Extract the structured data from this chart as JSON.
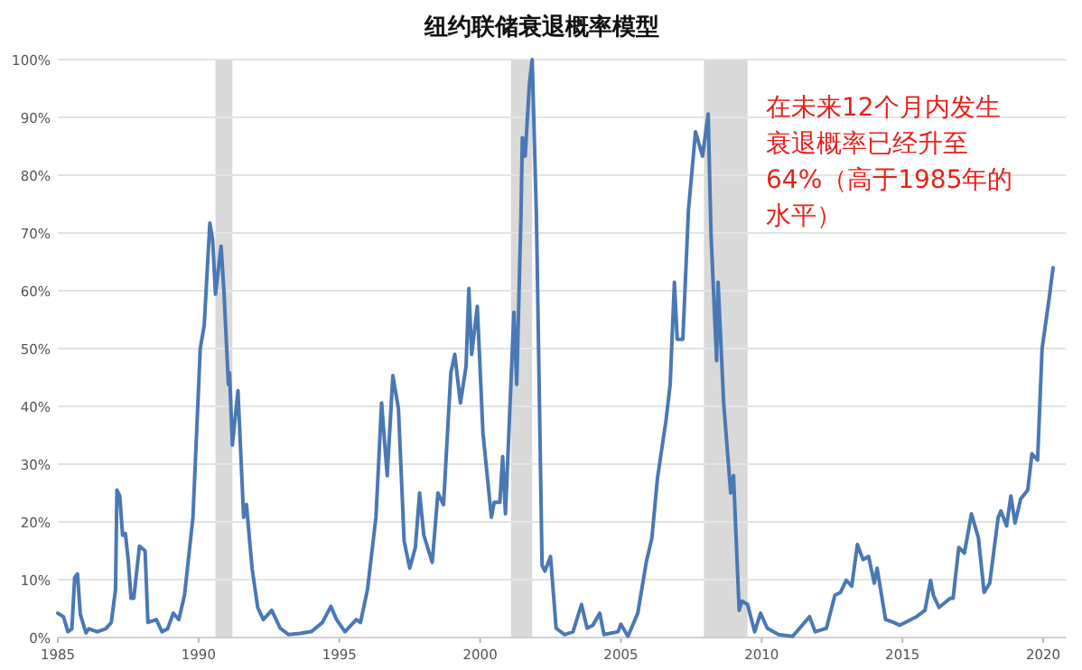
{
  "chart_data": {
    "type": "line",
    "title": "纽约联储衰退概率模型",
    "xlim": [
      1985,
      2020.8
    ],
    "ylim": [
      0,
      100
    ],
    "xticks": [
      1985,
      1990,
      1995,
      2000,
      2005,
      2010,
      2015,
      2020
    ],
    "yticks": [
      {
        "value": 0,
        "label": "0%"
      },
      {
        "value": 10,
        "label": "10%"
      },
      {
        "value": 20,
        "label": "20%"
      },
      {
        "value": 30,
        "label": "30%"
      },
      {
        "value": 40,
        "label": "40%"
      },
      {
        "value": 50,
        "label": "50%"
      },
      {
        "value": 60,
        "label": "60%"
      },
      {
        "value": 70,
        "label": "70%"
      },
      {
        "value": 80,
        "label": "80%"
      },
      {
        "value": 90,
        "label": "90%"
      },
      {
        "value": 100,
        "label": "100%"
      }
    ],
    "grid": "y",
    "bands": [
      {
        "axis": "x",
        "from": 1990.6,
        "to": 1991.2,
        "color": "#d9d9d9"
      },
      {
        "axis": "x",
        "from": 2001.1,
        "to": 2001.85,
        "color": "#d9d9d9"
      },
      {
        "axis": "x",
        "from": 2007.95,
        "to": 2009.5,
        "color": "#d9d9d9"
      }
    ],
    "annotations": [
      "在未来12个月内发生",
      "衰退概率已经升至",
      "64%（高于1985年的",
      "水平）"
    ],
    "series": [
      {
        "color": "#4a78b4",
        "x": [
          1985.0,
          1985.2,
          1985.36,
          1985.5,
          1985.6,
          1985.7,
          1985.8,
          1986.0,
          1986.1,
          1986.4,
          1986.7,
          1986.9,
          1987.05,
          1987.1,
          1987.2,
          1987.3,
          1987.4,
          1987.5,
          1987.6,
          1987.7,
          1987.9,
          1988.1,
          1988.2,
          1988.5,
          1988.7,
          1988.9,
          1989.1,
          1989.3,
          1989.5,
          1989.8,
          1990.06,
          1990.2,
          1990.4,
          1990.5,
          1990.6,
          1990.8,
          1990.9,
          1991.06,
          1991.1,
          1991.2,
          1991.4,
          1991.6,
          1991.7,
          1991.9,
          1992.1,
          1992.3,
          1992.6,
          1992.9,
          1993.2,
          1993.6,
          1994.0,
          1994.4,
          1994.7,
          1994.9,
          1995.2,
          1995.6,
          1995.75,
          1996.0,
          1996.3,
          1996.5,
          1996.7,
          1996.9,
          1997.1,
          1997.3,
          1997.5,
          1997.7,
          1997.85,
          1998.0,
          1998.3,
          1998.5,
          1998.7,
          1998.96,
          1999.1,
          1999.3,
          1999.5,
          1999.6,
          1999.7,
          1999.9,
          2000.1,
          2000.4,
          2000.5,
          2000.7,
          2000.8,
          2000.9,
          2001.2,
          2001.3,
          2001.45,
          2001.5,
          2001.6,
          2001.75,
          2001.85,
          2002.0,
          2002.2,
          2002.3,
          2002.5,
          2002.7,
          2003.0,
          2003.3,
          2003.6,
          2003.8,
          2004.0,
          2004.25,
          2004.4,
          2004.9,
          2005.0,
          2005.25,
          2005.6,
          2005.9,
          2006.1,
          2006.3,
          2006.6,
          2006.75,
          2006.9,
          2007.0,
          2007.2,
          2007.4,
          2007.65,
          2007.9,
          2008.1,
          2008.2,
          2008.4,
          2008.45,
          2008.65,
          2008.9,
          2009.0,
          2009.2,
          2009.3,
          2009.5,
          2009.75,
          2009.96,
          2010.2,
          2010.6,
          2011.1,
          2011.7,
          2011.9,
          2012.3,
          2012.6,
          2012.8,
          2013.0,
          2013.2,
          2013.4,
          2013.6,
          2013.8,
          2014.0,
          2014.1,
          2014.4,
          2014.7,
          2014.9,
          2015.5,
          2015.8,
          2016.0,
          2016.1,
          2016.3,
          2016.7,
          2016.8,
          2017.0,
          2017.2,
          2017.45,
          2017.7,
          2017.9,
          2018.1,
          2018.4,
          2018.5,
          2018.7,
          2018.85,
          2019.0,
          2019.2,
          2019.45,
          2019.6,
          2019.8,
          2019.96,
          2020.2,
          2020.35
        ],
        "values": [
          4.2,
          3.6,
          1,
          1.5,
          10.4,
          11,
          4,
          0.8,
          1.5,
          1,
          1.5,
          2.6,
          8.3,
          25.5,
          24.5,
          17.7,
          18,
          13.5,
          6.8,
          6.8,
          15.8,
          15,
          2.6,
          3.1,
          1,
          1.5,
          4.2,
          3.1,
          7.3,
          20.8,
          50,
          54,
          71.7,
          68.8,
          59.4,
          67.7,
          60,
          43.8,
          45.8,
          33.3,
          42.7,
          20.8,
          23,
          12,
          5.2,
          3.1,
          4.7,
          1.6,
          0.5,
          0.7,
          1,
          2.6,
          5.4,
          3.1,
          1,
          3.1,
          2.6,
          8.3,
          20.8,
          40.6,
          28,
          45.3,
          39.6,
          16.7,
          12,
          15.6,
          25,
          17.7,
          13,
          25,
          23,
          45.8,
          49,
          40.6,
          46.9,
          60.4,
          49,
          57.3,
          35.4,
          20.8,
          23.4,
          23.4,
          31.3,
          21.4,
          56.3,
          43.8,
          72.9,
          86.5,
          83.3,
          95.8,
          100,
          72.9,
          12.5,
          11.5,
          14,
          1.6,
          0.5,
          1,
          5.7,
          1.6,
          2.1,
          4.2,
          0.5,
          1,
          2.3,
          0.2,
          4.2,
          13,
          17.2,
          27.6,
          37.5,
          43.8,
          61.5,
          51.6,
          51.6,
          74,
          87.5,
          83.3,
          90.6,
          69.8,
          47.9,
          61.5,
          40.6,
          25,
          28,
          4.7,
          6.3,
          5.7,
          1,
          4.2,
          1.6,
          0.5,
          0.2,
          3.6,
          1,
          1.6,
          7.3,
          7.8,
          9.9,
          8.9,
          16.1,
          13.5,
          14,
          9.4,
          12,
          3.1,
          2.6,
          2.1,
          3.6,
          4.7,
          9.9,
          7.3,
          5.2,
          6.8,
          6.8,
          15.6,
          14.6,
          21.4,
          17.2,
          7.8,
          9.4,
          20.8,
          21.9,
          19.3,
          24.5,
          19.8,
          24,
          25.5,
          31.8,
          30.7,
          50,
          58.3,
          64
        ]
      }
    ]
  }
}
